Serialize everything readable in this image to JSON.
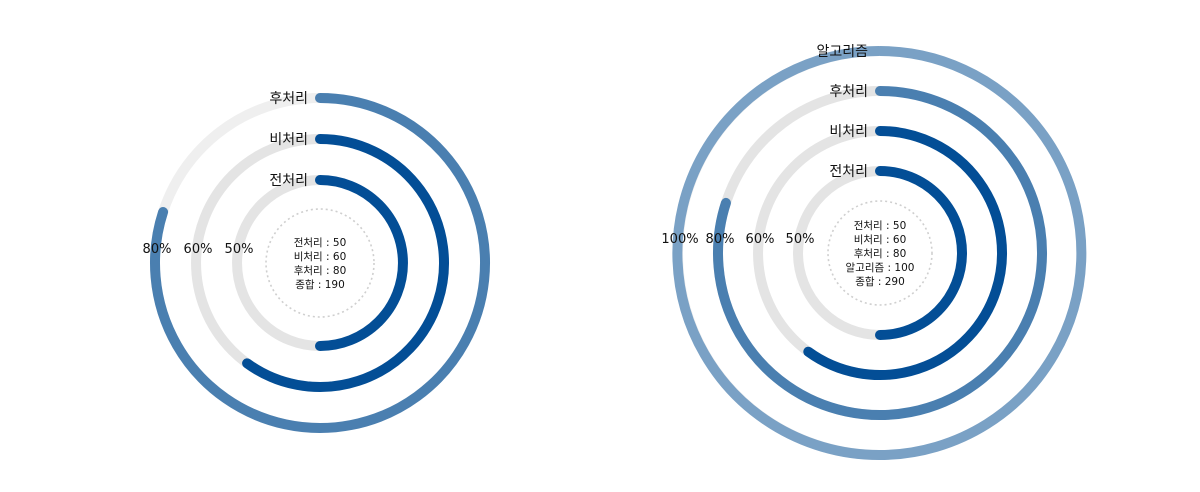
{
  "chart_data": [
    {
      "type": "radial-bar",
      "series": [
        {
          "name": "전처리",
          "value": 50,
          "max_label": "50%",
          "color": "#034e96",
          "track": "#e4e4e4"
        },
        {
          "name": "비처리",
          "value": 60,
          "max_label": "60%",
          "color": "#034e96",
          "track": "#e4e4e4"
        },
        {
          "name": "후처리",
          "value": 80,
          "max_label": "80%",
          "color": "#4a7fb0",
          "track": "#efefef"
        }
      ],
      "center_summary": [
        "전처리 : 50",
        "비처리 : 60",
        "후처리 : 80",
        "종합 : 190"
      ]
    },
    {
      "type": "radial-bar",
      "series": [
        {
          "name": "전처리",
          "value": 50,
          "max_label": "50%",
          "color": "#034e96",
          "track": "#e4e4e4"
        },
        {
          "name": "비처리",
          "value": 60,
          "max_label": "60%",
          "color": "#034e96",
          "track": "#e4e4e4"
        },
        {
          "name": "후처리",
          "value": 80,
          "max_label": "80%",
          "color": "#4a7fb0",
          "track": "#e4e4e4"
        },
        {
          "name": "알고리즘",
          "value": 100,
          "max_label": "100%",
          "color": "#7aa1c5",
          "track": "#efefef"
        }
      ],
      "center_summary": [
        "전처리 : 50",
        "비처리 : 60",
        "후처리 : 80",
        "알고리즘 : 100",
        "종합 : 290"
      ]
    }
  ]
}
